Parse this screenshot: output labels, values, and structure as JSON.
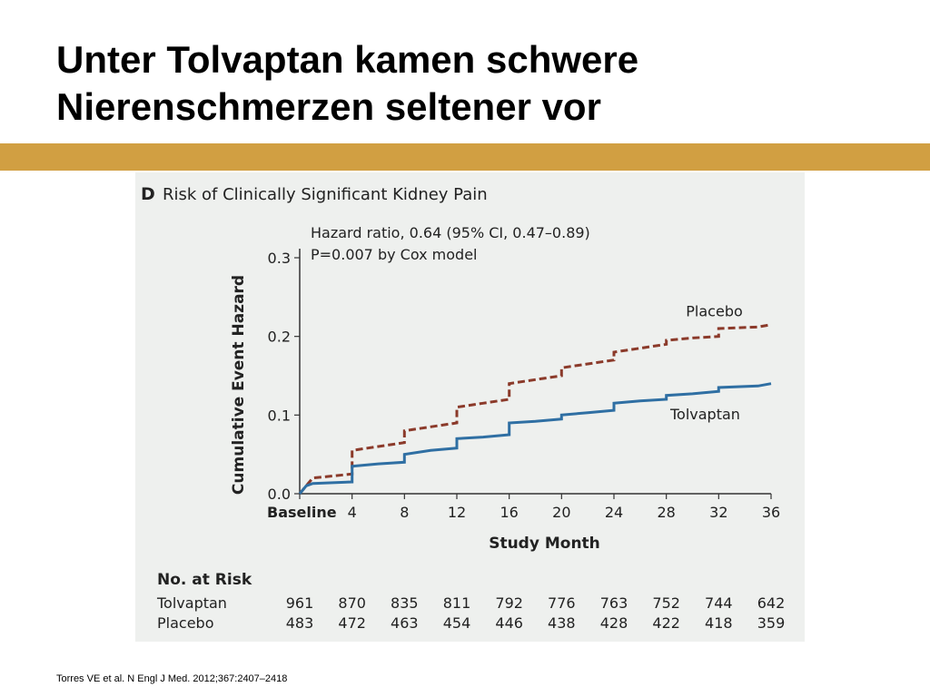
{
  "slide": {
    "title_line1": "Unter Tolvaptan kamen schwere",
    "title_line2": "Nierenschmerzen seltener vor",
    "citation": "Torres VE et al. N Engl J Med. 2012;367:2407–2418"
  },
  "colors": {
    "accent_bar": "#D19F42",
    "tolvaptan": "#2f6fa3",
    "placebo": "#8b3a2a"
  },
  "chart_data": {
    "type": "line",
    "panel_letter": "D",
    "title": "Risk of Clinically Significant Kidney Pain",
    "annotation_line1": "Hazard ratio, 0.64 (95% CI, 0.47–0.89)",
    "annotation_line2": "P=0.007 by Cox model",
    "xlabel": "Study Month",
    "ylabel": "Cumulative Event Hazard",
    "xlim": [
      0,
      36
    ],
    "ylim": [
      0,
      0.3
    ],
    "x_ticks": [
      0,
      4,
      8,
      12,
      16,
      20,
      24,
      28,
      32,
      36
    ],
    "x_tick_labels": [
      "Baseline",
      "4",
      "8",
      "12",
      "16",
      "20",
      "24",
      "28",
      "32",
      "36"
    ],
    "y_ticks": [
      0.0,
      0.1,
      0.2,
      0.3
    ],
    "y_tick_labels": [
      "0.0",
      "0.1",
      "0.2",
      "0.3"
    ],
    "series": [
      {
        "name": "Placebo",
        "style": "dashed",
        "points": [
          [
            0,
            0
          ],
          [
            0.5,
            0.01
          ],
          [
            1,
            0.02
          ],
          [
            4,
            0.025
          ],
          [
            4,
            0.055
          ],
          [
            6,
            0.06
          ],
          [
            8,
            0.065
          ],
          [
            8,
            0.08
          ],
          [
            10,
            0.085
          ],
          [
            12,
            0.09
          ],
          [
            12,
            0.11
          ],
          [
            14,
            0.115
          ],
          [
            16,
            0.12
          ],
          [
            16,
            0.14
          ],
          [
            18,
            0.145
          ],
          [
            20,
            0.15
          ],
          [
            20,
            0.16
          ],
          [
            22,
            0.165
          ],
          [
            24,
            0.17
          ],
          [
            24,
            0.18
          ],
          [
            26,
            0.185
          ],
          [
            28,
            0.19
          ],
          [
            28,
            0.195
          ],
          [
            30,
            0.198
          ],
          [
            32,
            0.2
          ],
          [
            32,
            0.21
          ],
          [
            35,
            0.212
          ],
          [
            36,
            0.215
          ]
        ]
      },
      {
        "name": "Tolvaptan",
        "style": "solid",
        "points": [
          [
            0,
            0
          ],
          [
            0.5,
            0.01
          ],
          [
            1,
            0.013
          ],
          [
            4,
            0.015
          ],
          [
            4,
            0.035
          ],
          [
            6,
            0.038
          ],
          [
            8,
            0.04
          ],
          [
            8,
            0.05
          ],
          [
            10,
            0.055
          ],
          [
            12,
            0.058
          ],
          [
            12,
            0.07
          ],
          [
            14,
            0.072
          ],
          [
            16,
            0.075
          ],
          [
            16,
            0.09
          ],
          [
            18,
            0.092
          ],
          [
            20,
            0.095
          ],
          [
            20,
            0.1
          ],
          [
            22,
            0.103
          ],
          [
            24,
            0.106
          ],
          [
            24,
            0.115
          ],
          [
            26,
            0.118
          ],
          [
            28,
            0.12
          ],
          [
            28,
            0.125
          ],
          [
            30,
            0.127
          ],
          [
            32,
            0.13
          ],
          [
            32,
            0.135
          ],
          [
            35,
            0.137
          ],
          [
            36,
            0.14
          ]
        ]
      }
    ],
    "risk_table": {
      "header": "No. at Risk",
      "rows": [
        {
          "label": "Tolvaptan",
          "values": [
            "961",
            "870",
            "835",
            "811",
            "792",
            "776",
            "763",
            "752",
            "744",
            "642"
          ]
        },
        {
          "label": "Placebo",
          "values": [
            "483",
            "472",
            "463",
            "454",
            "446",
            "438",
            "428",
            "422",
            "418",
            "359"
          ]
        }
      ]
    }
  }
}
